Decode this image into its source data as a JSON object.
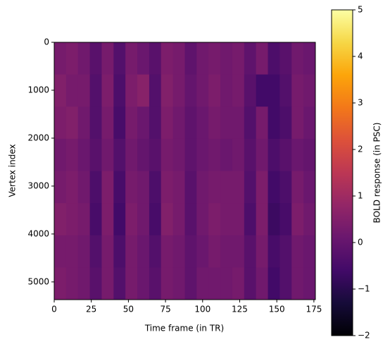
{
  "chart_data": {
    "type": "heatmap",
    "colormap": "inferno",
    "xlabel": "Time frame (in TR)",
    "ylabel": "Vertex index",
    "colorbar_label": "BOLD response (in PSC)",
    "xlim": [
      0,
      176
    ],
    "ylim": [
      5370,
      0
    ],
    "xticks": [
      0,
      25,
      50,
      75,
      100,
      125,
      150,
      175
    ],
    "yticks": [
      0,
      1000,
      2000,
      3000,
      4000,
      5000
    ],
    "zlim": [
      -2,
      5
    ],
    "zticks": [
      {
        "value": -2,
        "label": "−2"
      },
      {
        "value": -1,
        "label": "−1"
      },
      0,
      1,
      2,
      3,
      4,
      5
    ],
    "z": [
      [
        0.3,
        0.4,
        0.2,
        -0.2,
        0.3,
        -0.3,
        0.3,
        0.1,
        -0.2,
        0.4,
        0.3,
        -0.1,
        0.2,
        0.3,
        0.2,
        0.3,
        -0.1,
        0.3,
        -0.4,
        -0.2,
        0.2,
        0.1
      ],
      [
        0.5,
        0.3,
        0.3,
        -0.3,
        0.4,
        -0.4,
        0.4,
        0.6,
        -0.3,
        0.5,
        0.3,
        0.0,
        0.2,
        0.4,
        0.2,
        0.3,
        -0.2,
        -0.6,
        -0.6,
        -0.3,
        0.3,
        0.2
      ],
      [
        0.4,
        0.5,
        0.2,
        -0.3,
        0.3,
        -0.5,
        0.3,
        0.1,
        -0.3,
        0.4,
        0.2,
        -0.1,
        0.1,
        0.3,
        0.2,
        0.2,
        -0.3,
        0.3,
        -0.6,
        -0.4,
        0.3,
        0.1
      ],
      [
        0.2,
        0.3,
        0.1,
        -0.2,
        0.2,
        -0.3,
        0.2,
        0.0,
        -0.2,
        0.3,
        0.2,
        -0.1,
        0.1,
        0.2,
        0.1,
        0.2,
        -0.2,
        0.2,
        -0.4,
        -0.2,
        0.1,
        0.0
      ],
      [
        0.3,
        0.4,
        0.2,
        -0.4,
        0.4,
        -0.5,
        0.3,
        0.2,
        -0.4,
        0.4,
        0.3,
        -0.2,
        0.2,
        0.3,
        0.3,
        0.3,
        -0.3,
        0.4,
        -0.6,
        -0.4,
        0.3,
        0.1
      ],
      [
        0.5,
        0.4,
        0.3,
        -0.5,
        0.4,
        -0.6,
        0.4,
        0.2,
        -0.5,
        0.5,
        0.3,
        -0.2,
        0.2,
        0.4,
        0.3,
        0.3,
        -0.4,
        0.4,
        -0.7,
        -0.5,
        0.4,
        0.2
      ],
      [
        0.3,
        0.3,
        0.2,
        -0.3,
        0.3,
        -0.4,
        0.3,
        0.1,
        -0.3,
        0.3,
        0.2,
        -0.1,
        0.1,
        0.3,
        0.2,
        0.2,
        -0.2,
        0.3,
        -0.5,
        -0.3,
        0.2,
        0.1
      ],
      [
        0.4,
        0.3,
        0.2,
        -0.2,
        0.3,
        -0.3,
        0.3,
        0.1,
        -0.2,
        0.3,
        0.2,
        -0.1,
        0.2,
        0.2,
        0.2,
        0.3,
        -0.2,
        0.2,
        -0.6,
        -0.3,
        0.2,
        0.1
      ]
    ]
  }
}
